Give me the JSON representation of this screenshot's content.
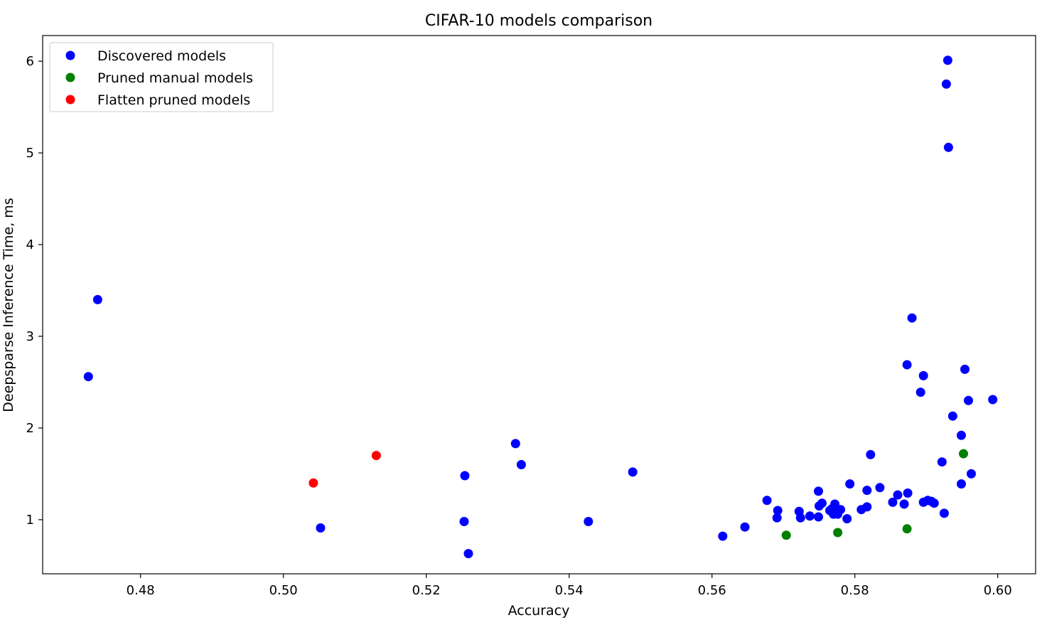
{
  "chart_data": {
    "type": "scatter",
    "title": "CIFAR-10 models comparison",
    "xlabel": "Accuracy",
    "ylabel": "Deepsparse Inference Time, ms",
    "xlim": [
      0.4663,
      0.6053
    ],
    "ylim": [
      0.41,
      6.28
    ],
    "xticks": [
      0.48,
      0.5,
      0.52,
      0.54,
      0.56,
      0.58,
      0.6
    ],
    "xtick_labels": [
      "0.48",
      "0.50",
      "0.52",
      "0.54",
      "0.56",
      "0.58",
      "0.60"
    ],
    "yticks": [
      1,
      2,
      3,
      4,
      5,
      6
    ],
    "ytick_labels": [
      "1",
      "2",
      "3",
      "4",
      "5",
      "6"
    ],
    "grid": false,
    "legend_position": "top-left",
    "series": [
      {
        "name": "Discovered models",
        "color": "#0000ff",
        "points": [
          [
            0.4727,
            2.56
          ],
          [
            0.474,
            3.4
          ],
          [
            0.5052,
            0.91
          ],
          [
            0.5254,
            1.48
          ],
          [
            0.5253,
            0.98
          ],
          [
            0.5259,
            0.63
          ],
          [
            0.5325,
            1.83
          ],
          [
            0.5333,
            1.6
          ],
          [
            0.5427,
            0.98
          ],
          [
            0.5489,
            1.52
          ],
          [
            0.5615,
            0.82
          ],
          [
            0.5646,
            0.92
          ],
          [
            0.5677,
            1.21
          ],
          [
            0.5692,
            1.1
          ],
          [
            0.5691,
            1.02
          ],
          [
            0.5722,
            1.09
          ],
          [
            0.5724,
            1.02
          ],
          [
            0.5737,
            1.04
          ],
          [
            0.5749,
            1.31
          ],
          [
            0.5749,
            1.03
          ],
          [
            0.575,
            1.15
          ],
          [
            0.5754,
            1.18
          ],
          [
            0.5765,
            1.1
          ],
          [
            0.5768,
            1.12
          ],
          [
            0.577,
            1.06
          ],
          [
            0.5772,
            1.17
          ],
          [
            0.5773,
            1.07
          ],
          [
            0.5776,
            1.06
          ],
          [
            0.578,
            1.11
          ],
          [
            0.5789,
            1.01
          ],
          [
            0.5793,
            1.39
          ],
          [
            0.5809,
            1.11
          ],
          [
            0.5817,
            1.14
          ],
          [
            0.5817,
            1.32
          ],
          [
            0.5822,
            1.71
          ],
          [
            0.5835,
            1.35
          ],
          [
            0.5853,
            1.19
          ],
          [
            0.586,
            1.27
          ],
          [
            0.5869,
            1.17
          ],
          [
            0.5873,
            2.69
          ],
          [
            0.5874,
            1.29
          ],
          [
            0.588,
            3.2
          ],
          [
            0.5892,
            2.39
          ],
          [
            0.5896,
            2.57
          ],
          [
            0.5896,
            1.19
          ],
          [
            0.5902,
            1.21
          ],
          [
            0.5907,
            1.2
          ],
          [
            0.5911,
            1.18
          ],
          [
            0.5922,
            1.63
          ],
          [
            0.5925,
            1.07
          ],
          [
            0.5928,
            5.75
          ],
          [
            0.593,
            6.01
          ],
          [
            0.5931,
            5.06
          ],
          [
            0.5937,
            2.13
          ],
          [
            0.5949,
            1.92
          ],
          [
            0.5949,
            1.39
          ],
          [
            0.5954,
            2.64
          ],
          [
            0.5959,
            2.3
          ],
          [
            0.5963,
            1.5
          ],
          [
            0.5993,
            2.31
          ]
        ]
      },
      {
        "name": "Pruned manual models",
        "color": "#008000",
        "points": [
          [
            0.5704,
            0.83
          ],
          [
            0.5776,
            0.86
          ],
          [
            0.5873,
            0.9
          ],
          [
            0.5952,
            1.72
          ]
        ]
      },
      {
        "name": "Flatten pruned models",
        "color": "#ff0000",
        "points": [
          [
            0.5042,
            1.4
          ],
          [
            0.513,
            1.7
          ]
        ]
      }
    ]
  }
}
